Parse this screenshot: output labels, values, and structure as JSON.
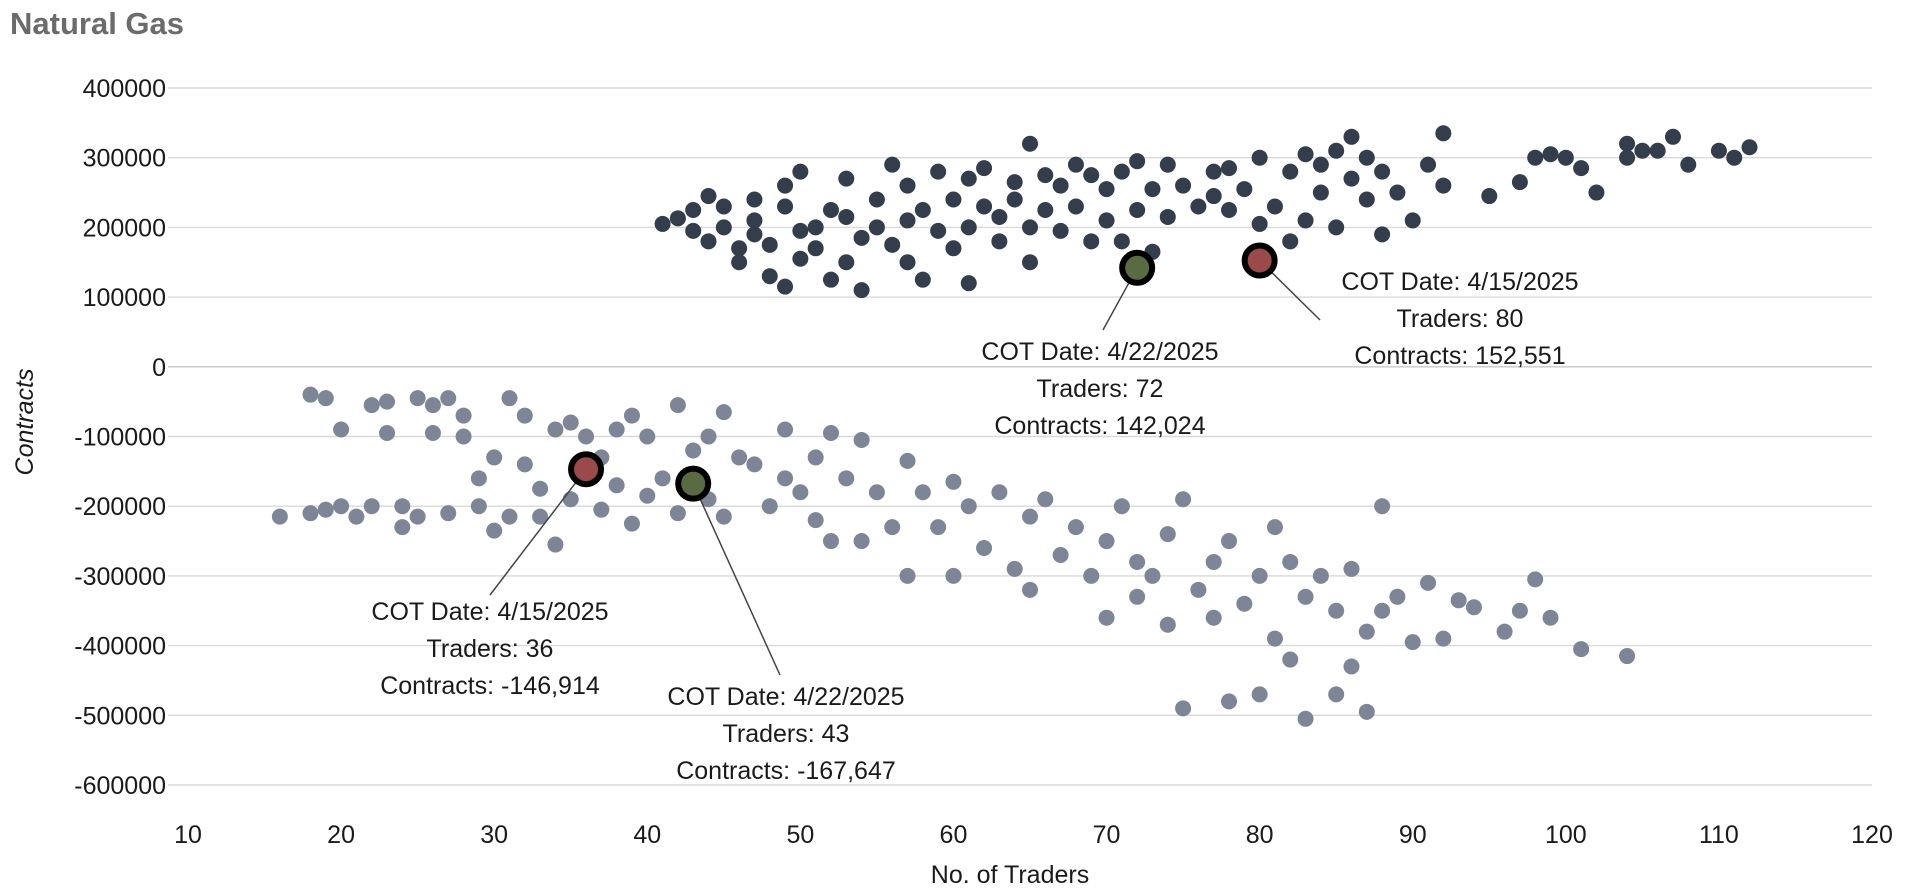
{
  "chart_data": {
    "type": "scatter",
    "title": "Natural Gas",
    "xlabel": "No. of Traders",
    "ylabel": "Contracts",
    "xlim": [
      10,
      120
    ],
    "ylim": [
      -600000,
      400000
    ],
    "x_ticks": [
      10,
      20,
      30,
      40,
      50,
      60,
      70,
      80,
      90,
      100,
      110,
      120
    ],
    "y_ticks": [
      400000,
      300000,
      200000,
      100000,
      0,
      -100000,
      -200000,
      -300000,
      -400000,
      -500000,
      -600000
    ],
    "grid": true,
    "legend": "none",
    "colors": {
      "upper": "#333d4b",
      "lower": "#7d8596",
      "highlight_red": "#9a4a4a",
      "highlight_green": "#5a6b44",
      "grid": "#d9d9d9"
    },
    "series": [
      {
        "points": [
          [
            41,
            205000
          ],
          [
            42,
            213000
          ],
          [
            43,
            195000
          ],
          [
            43,
            225000
          ],
          [
            44,
            180000
          ],
          [
            44,
            245000
          ],
          [
            45,
            200000
          ],
          [
            45,
            230000
          ],
          [
            46,
            150000
          ],
          [
            46,
            170000
          ],
          [
            47,
            190000
          ],
          [
            47,
            240000
          ],
          [
            47,
            210000
          ],
          [
            48,
            130000
          ],
          [
            48,
            175000
          ],
          [
            49,
            230000
          ],
          [
            49,
            260000
          ],
          [
            49,
            115000
          ],
          [
            50,
            195000
          ],
          [
            50,
            155000
          ],
          [
            50,
            280000
          ],
          [
            51,
            200000
          ],
          [
            51,
            170000
          ],
          [
            52,
            225000
          ],
          [
            52,
            125000
          ],
          [
            53,
            215000
          ],
          [
            53,
            270000
          ],
          [
            53,
            150000
          ],
          [
            54,
            185000
          ],
          [
            54,
            110000
          ],
          [
            55,
            200000
          ],
          [
            55,
            240000
          ],
          [
            56,
            175000
          ],
          [
            56,
            290000
          ],
          [
            57,
            210000
          ],
          [
            57,
            150000
          ],
          [
            57,
            260000
          ],
          [
            58,
            225000
          ],
          [
            58,
            125000
          ],
          [
            59,
            195000
          ],
          [
            59,
            280000
          ],
          [
            60,
            240000
          ],
          [
            60,
            170000
          ],
          [
            61,
            270000
          ],
          [
            61,
            200000
          ],
          [
            61,
            120000
          ],
          [
            62,
            285000
          ],
          [
            62,
            230000
          ],
          [
            63,
            215000
          ],
          [
            63,
            180000
          ],
          [
            64,
            265000
          ],
          [
            64,
            240000
          ],
          [
            65,
            320000
          ],
          [
            65,
            200000
          ],
          [
            65,
            150000
          ],
          [
            66,
            275000
          ],
          [
            66,
            225000
          ],
          [
            67,
            260000
          ],
          [
            67,
            195000
          ],
          [
            68,
            290000
          ],
          [
            68,
            230000
          ],
          [
            69,
            275000
          ],
          [
            69,
            180000
          ],
          [
            70,
            255000
          ],
          [
            70,
            210000
          ],
          [
            71,
            280000
          ],
          [
            71,
            180000
          ],
          [
            72,
            295000
          ],
          [
            72,
            225000
          ],
          [
            73,
            255000
          ],
          [
            73,
            165000
          ],
          [
            74,
            290000
          ],
          [
            74,
            215000
          ],
          [
            75,
            260000
          ],
          [
            76,
            230000
          ],
          [
            77,
            280000
          ],
          [
            77,
            245000
          ],
          [
            78,
            285000
          ],
          [
            78,
            225000
          ],
          [
            79,
            255000
          ],
          [
            80,
            300000
          ],
          [
            80,
            205000
          ],
          [
            81,
            230000
          ],
          [
            82,
            280000
          ],
          [
            82,
            180000
          ],
          [
            83,
            305000
          ],
          [
            83,
            210000
          ],
          [
            84,
            250000
          ],
          [
            84,
            290000
          ],
          [
            85,
            310000
          ],
          [
            85,
            200000
          ],
          [
            86,
            330000
          ],
          [
            86,
            270000
          ],
          [
            87,
            300000
          ],
          [
            87,
            240000
          ],
          [
            88,
            280000
          ],
          [
            88,
            190000
          ],
          [
            89,
            250000
          ],
          [
            90,
            210000
          ],
          [
            91,
            290000
          ],
          [
            92,
            335000
          ],
          [
            92,
            260000
          ],
          [
            95,
            245000
          ],
          [
            97,
            265000
          ],
          [
            98,
            300000
          ],
          [
            99,
            305000
          ],
          [
            100,
            300000
          ],
          [
            101,
            285000
          ],
          [
            102,
            250000
          ],
          [
            104,
            320000
          ],
          [
            104,
            300000
          ],
          [
            105,
            310000
          ],
          [
            106,
            310000
          ],
          [
            107,
            330000
          ],
          [
            108,
            290000
          ],
          [
            110,
            310000
          ],
          [
            111,
            300000
          ],
          [
            112,
            315000
          ]
        ]
      },
      {
        "points": [
          [
            16,
            -215000
          ],
          [
            18,
            -40000
          ],
          [
            18,
            -210000
          ],
          [
            19,
            -45000
          ],
          [
            19,
            -205000
          ],
          [
            20,
            -90000
          ],
          [
            20,
            -200000
          ],
          [
            21,
            -215000
          ],
          [
            22,
            -55000
          ],
          [
            22,
            -200000
          ],
          [
            23,
            -95000
          ],
          [
            23,
            -50000
          ],
          [
            24,
            -200000
          ],
          [
            24,
            -230000
          ],
          [
            25,
            -45000
          ],
          [
            25,
            -215000
          ],
          [
            26,
            -95000
          ],
          [
            26,
            -55000
          ],
          [
            27,
            -210000
          ],
          [
            27,
            -45000
          ],
          [
            28,
            -70000
          ],
          [
            28,
            -100000
          ],
          [
            29,
            -160000
          ],
          [
            29,
            -200000
          ],
          [
            30,
            -130000
          ],
          [
            30,
            -235000
          ],
          [
            31,
            -45000
          ],
          [
            31,
            -215000
          ],
          [
            32,
            -70000
          ],
          [
            32,
            -140000
          ],
          [
            33,
            -175000
          ],
          [
            33,
            -215000
          ],
          [
            34,
            -90000
          ],
          [
            34,
            -255000
          ],
          [
            35,
            -80000
          ],
          [
            35,
            -190000
          ],
          [
            36,
            -146914
          ],
          [
            36,
            -100000
          ],
          [
            37,
            -130000
          ],
          [
            37,
            -205000
          ],
          [
            38,
            -90000
          ],
          [
            38,
            -170000
          ],
          [
            39,
            -70000
          ],
          [
            39,
            -225000
          ],
          [
            40,
            -100000
          ],
          [
            40,
            -185000
          ],
          [
            41,
            -160000
          ],
          [
            42,
            -55000
          ],
          [
            42,
            -210000
          ],
          [
            43,
            -167647
          ],
          [
            43,
            -120000
          ],
          [
            44,
            -190000
          ],
          [
            44,
            -100000
          ],
          [
            45,
            -65000
          ],
          [
            45,
            -215000
          ],
          [
            46,
            -130000
          ],
          [
            47,
            -140000
          ],
          [
            48,
            -200000
          ],
          [
            49,
            -90000
          ],
          [
            49,
            -160000
          ],
          [
            50,
            -180000
          ],
          [
            51,
            -220000
          ],
          [
            51,
            -130000
          ],
          [
            52,
            -95000
          ],
          [
            52,
            -250000
          ],
          [
            53,
            -160000
          ],
          [
            54,
            -105000
          ],
          [
            54,
            -250000
          ],
          [
            55,
            -180000
          ],
          [
            56,
            -230000
          ],
          [
            57,
            -135000
          ],
          [
            57,
            -300000
          ],
          [
            58,
            -180000
          ],
          [
            59,
            -230000
          ],
          [
            60,
            -165000
          ],
          [
            60,
            -300000
          ],
          [
            61,
            -200000
          ],
          [
            62,
            -260000
          ],
          [
            63,
            -180000
          ],
          [
            64,
            -290000
          ],
          [
            65,
            -215000
          ],
          [
            65,
            -320000
          ],
          [
            66,
            -190000
          ],
          [
            67,
            -270000
          ],
          [
            68,
            -230000
          ],
          [
            69,
            -300000
          ],
          [
            70,
            -250000
          ],
          [
            70,
            -360000
          ],
          [
            71,
            -200000
          ],
          [
            72,
            -280000
          ],
          [
            72,
            -330000
          ],
          [
            73,
            -300000
          ],
          [
            74,
            -240000
          ],
          [
            74,
            -370000
          ],
          [
            75,
            -190000
          ],
          [
            75,
            -490000
          ],
          [
            76,
            -320000
          ],
          [
            77,
            -280000
          ],
          [
            77,
            -360000
          ],
          [
            78,
            -480000
          ],
          [
            78,
            -250000
          ],
          [
            79,
            -340000
          ],
          [
            80,
            -470000
          ],
          [
            80,
            -300000
          ],
          [
            81,
            -230000
          ],
          [
            81,
            -390000
          ],
          [
            82,
            -280000
          ],
          [
            82,
            -420000
          ],
          [
            83,
            -330000
          ],
          [
            83,
            -505000
          ],
          [
            84,
            -300000
          ],
          [
            85,
            -350000
          ],
          [
            85,
            -470000
          ],
          [
            86,
            -430000
          ],
          [
            86,
            -290000
          ],
          [
            87,
            -495000
          ],
          [
            87,
            -380000
          ],
          [
            88,
            -200000
          ],
          [
            88,
            -350000
          ],
          [
            89,
            -330000
          ],
          [
            90,
            -395000
          ],
          [
            91,
            -310000
          ],
          [
            92,
            -390000
          ],
          [
            93,
            -335000
          ],
          [
            94,
            -345000
          ],
          [
            96,
            -380000
          ],
          [
            97,
            -350000
          ],
          [
            98,
            -305000
          ],
          [
            99,
            -360000
          ],
          [
            101,
            -405000
          ],
          [
            104,
            -415000
          ]
        ]
      }
    ],
    "highlights": [
      {
        "x": 72,
        "y": 142024,
        "color": "#5a6b44",
        "label_lines": [
          "COT Date: 4/22/2025",
          "Traders: 72",
          "Contracts: 142,024"
        ]
      },
      {
        "x": 80,
        "y": 152551,
        "color": "#9a4a4a",
        "label_lines": [
          "COT Date: 4/15/2025",
          "Traders: 80",
          "Contracts: 152,551"
        ]
      },
      {
        "x": 36,
        "y": -146914,
        "color": "#9a4a4a",
        "label_lines": [
          "COT Date: 4/15/2025",
          "Traders: 36",
          "Contracts: -146,914"
        ]
      },
      {
        "x": 43,
        "y": -167647,
        "color": "#5a6b44",
        "label_lines": [
          "COT Date: 4/22/2025",
          "Traders: 43",
          "Contracts: -167,647"
        ]
      }
    ]
  }
}
